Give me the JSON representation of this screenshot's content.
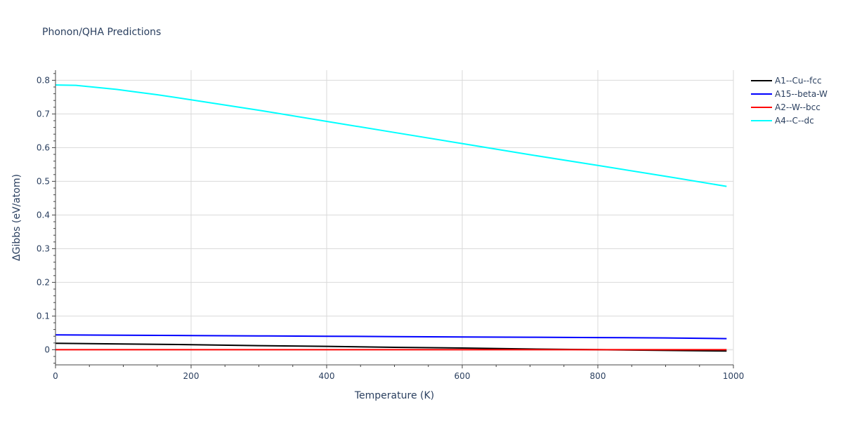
{
  "chart_data": {
    "type": "line",
    "title": "Phonon/QHA Predictions",
    "xlabel": "Temperature (K)",
    "ylabel": "ΔGibbs (eV/atom)",
    "xlim": [
      0,
      1000
    ],
    "ylim": [
      -0.045,
      0.83
    ],
    "xticks": [
      0,
      200,
      400,
      600,
      800,
      1000
    ],
    "xtick_labels": [
      "0",
      "200",
      "400",
      "600",
      "800",
      "1000"
    ],
    "yticks": [
      0,
      0.1,
      0.2,
      0.3,
      0.4,
      0.5,
      0.6,
      0.7,
      0.8
    ],
    "ytick_labels": [
      "0",
      "0.1",
      "0.2",
      "0.3",
      "0.4",
      "0.5",
      "0.6",
      "0.7",
      "0.8"
    ],
    "grid": true,
    "legend_position": "top-right",
    "series": [
      {
        "name": "A1--Cu--fcc",
        "color": "#000000",
        "x": [
          0,
          100,
          200,
          300,
          400,
          500,
          600,
          700,
          800,
          900,
          990
        ],
        "y": [
          0.019,
          0.017,
          0.015,
          0.012,
          0.01,
          0.007,
          0.005,
          0.002,
          0.0,
          -0.002,
          -0.004
        ]
      },
      {
        "name": "A15--beta-W",
        "color": "#0000ff",
        "x": [
          0,
          100,
          200,
          300,
          400,
          500,
          600,
          700,
          800,
          900,
          990
        ],
        "y": [
          0.044,
          0.043,
          0.042,
          0.041,
          0.04,
          0.039,
          0.038,
          0.037,
          0.036,
          0.035,
          0.033
        ]
      },
      {
        "name": "A2--W--bcc",
        "color": "#ff0000",
        "x": [
          0,
          200,
          400,
          600,
          800,
          990
        ],
        "y": [
          0.0,
          0.0,
          0.0,
          0.0,
          0.0,
          0.0
        ]
      },
      {
        "name": "A4--C--dc",
        "color": "#00ffff",
        "x": [
          0,
          30,
          60,
          90,
          120,
          150,
          200,
          300,
          400,
          500,
          600,
          700,
          800,
          900,
          990
        ],
        "y": [
          0.786,
          0.785,
          0.779,
          0.773,
          0.765,
          0.757,
          0.742,
          0.711,
          0.678,
          0.645,
          0.612,
          0.579,
          0.547,
          0.515,
          0.485
        ]
      }
    ]
  }
}
